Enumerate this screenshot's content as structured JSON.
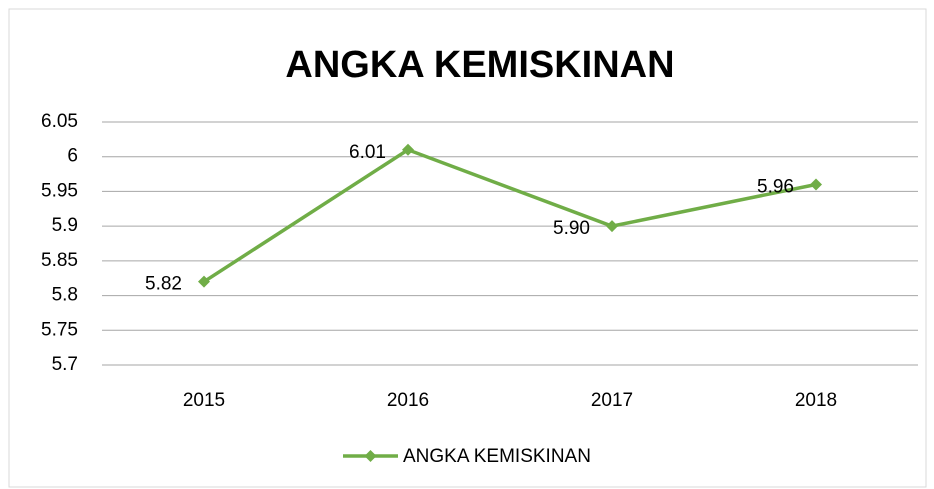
{
  "chart_data": {
    "type": "line",
    "title": "ANGKA KEMISKINAN",
    "categories": [
      "2015",
      "2016",
      "2017",
      "2018"
    ],
    "series": [
      {
        "name": "ANGKA KEMISKINAN",
        "color": "#70ad47",
        "values": [
          5.82,
          6.01,
          5.9,
          5.96
        ],
        "value_labels": [
          "5.82",
          "6.01",
          "5.90",
          "5.96"
        ]
      }
    ],
    "ylim": [
      5.7,
      6.05
    ],
    "yticks": [
      5.7,
      5.75,
      5.8,
      5.85,
      5.9,
      5.95,
      6,
      6.05
    ],
    "grid": true,
    "legend": "bottom"
  }
}
